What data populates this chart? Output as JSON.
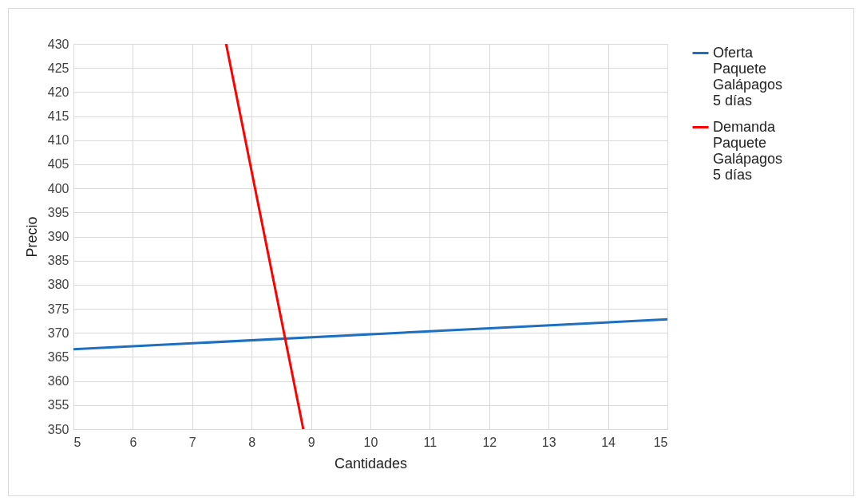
{
  "chart_data": {
    "type": "line",
    "xlabel": "Cantidades",
    "ylabel": "Precio",
    "xlim": [
      5,
      15
    ],
    "ylim": [
      350,
      430
    ],
    "xticks": [
      5,
      6,
      7,
      8,
      9,
      10,
      11,
      12,
      13,
      14,
      15
    ],
    "yticks": [
      350,
      355,
      360,
      365,
      370,
      375,
      380,
      385,
      390,
      395,
      400,
      405,
      410,
      415,
      420,
      425,
      430
    ],
    "grid": true,
    "legend": "right",
    "marker": "none",
    "line_style": "solid",
    "series": [
      {
        "name": "Oferta Paquete Galápagos 5 días",
        "color": "#1f6fc0",
        "x": [
          5,
          15
        ],
        "values": [
          366.6,
          372.8
        ]
      },
      {
        "name": "Demanda Paquete Galápagos 5 días",
        "color": "#ff0000",
        "x": [
          7.57,
          8.87
        ],
        "values": [
          430,
          350
        ]
      }
    ]
  }
}
